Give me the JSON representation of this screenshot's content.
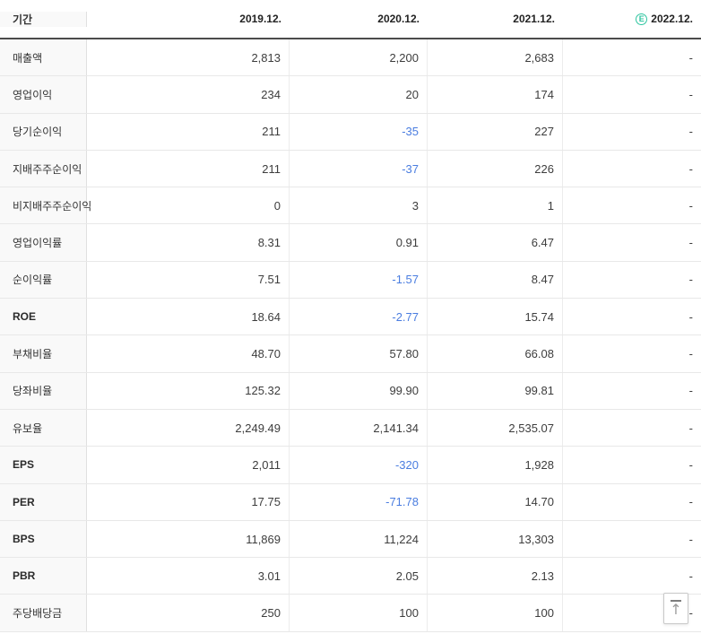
{
  "table": {
    "period_header": "기간",
    "year_columns": [
      "2019.12.",
      "2020.12.",
      "2021.12.",
      "2022.12."
    ],
    "estimate_badge": "E",
    "rows": [
      {
        "label": "매출액",
        "emphasis": false,
        "values": [
          "2,813",
          "2,200",
          "2,683",
          "-"
        ]
      },
      {
        "label": "영업이익",
        "emphasis": false,
        "values": [
          "234",
          "20",
          "174",
          "-"
        ]
      },
      {
        "label": "당기순이익",
        "emphasis": false,
        "values": [
          "211",
          "-35",
          "227",
          "-"
        ]
      },
      {
        "label": "지배주주순이익",
        "emphasis": false,
        "values": [
          "211",
          "-37",
          "226",
          "-"
        ]
      },
      {
        "label": "비지배주주순이익",
        "emphasis": false,
        "values": [
          "0",
          "3",
          "1",
          "-"
        ]
      },
      {
        "label": "영업이익률",
        "emphasis": false,
        "values": [
          "8.31",
          "0.91",
          "6.47",
          "-"
        ]
      },
      {
        "label": "순이익률",
        "emphasis": false,
        "values": [
          "7.51",
          "-1.57",
          "8.47",
          "-"
        ]
      },
      {
        "label": "ROE",
        "emphasis": true,
        "values": [
          "18.64",
          "-2.77",
          "15.74",
          "-"
        ]
      },
      {
        "label": "부채비율",
        "emphasis": false,
        "values": [
          "48.70",
          "57.80",
          "66.08",
          "-"
        ]
      },
      {
        "label": "당좌비율",
        "emphasis": false,
        "values": [
          "125.32",
          "99.90",
          "99.81",
          "-"
        ]
      },
      {
        "label": "유보율",
        "emphasis": false,
        "values": [
          "2,249.49",
          "2,141.34",
          "2,535.07",
          "-"
        ]
      },
      {
        "label": "EPS",
        "emphasis": true,
        "values": [
          "2,011",
          "-320",
          "1,928",
          "-"
        ]
      },
      {
        "label": "PER",
        "emphasis": true,
        "values": [
          "17.75",
          "-71.78",
          "14.70",
          "-"
        ]
      },
      {
        "label": "BPS",
        "emphasis": true,
        "values": [
          "11,869",
          "11,224",
          "13,303",
          "-"
        ]
      },
      {
        "label": "PBR",
        "emphasis": true,
        "values": [
          "3.01",
          "2.05",
          "2.13",
          "-"
        ]
      },
      {
        "label": "주당배당금",
        "emphasis": false,
        "values": [
          "250",
          "100",
          "100",
          "-"
        ]
      }
    ]
  },
  "colors": {
    "negative_value": "#4a7de0",
    "estimate_badge": "#2fc5a0"
  },
  "scroll_top": {
    "arrow": "↑"
  }
}
